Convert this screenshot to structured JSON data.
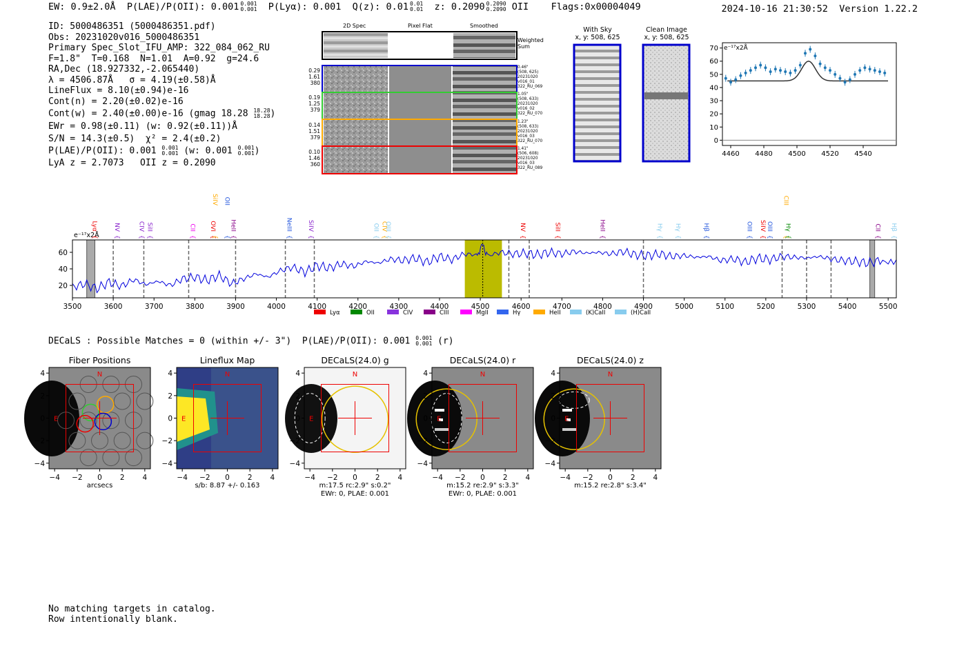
{
  "header": {
    "ew": "EW: 0.9±2.0Å",
    "plae": "P(LAE)/P(OII): 0.001",
    "plya": "P(Lyα): 0.001",
    "qz": "Q(z): 0.01",
    "z": "z: 0.2090",
    "oii": "OII",
    "flags": "Flags:0x00004049",
    "timestamp": "2024-10-16 21:30:52",
    "version": "Version 1.22.2",
    "sup_val": "0.001",
    "sub_val": "0.001",
    "qz_sup": "0.01",
    "qz_sub": "0.01",
    "z_sup": "0.2090",
    "z_sub": "0.2090"
  },
  "info": {
    "id": "ID: 5000486351 (5000486351.pdf)",
    "obs": "Obs: 20231020v016_5000486351",
    "slot": "Primary Spec_Slot_IFU_AMP: 322_084_062_RU",
    "params": "F=1.8\"  T=0.168  N=1.01  A=0.92  g=24.6",
    "radec": "RA,Dec (18.927332,-2.065440)",
    "lambda": "λ = 4506.87Å   σ = 4.19(±0.58)Å",
    "lineflux": "LineFlux = 8.10(±0.94)e-16",
    "contn": "Cont(n) = 2.20(±0.02)e-16",
    "contw": "Cont(w) = 2.40(±0.00)e-16 (gmag 18.28",
    "contw_sup": "18.28",
    "contw_sub": "18.28",
    "ewr": "EWr = 0.98(±0.11) (w: 0.92(±0.11))Å",
    "sn": "S/N = 14.3(±0.5)  χ² = 2.4(±0.2)",
    "plae_line": "P(LAE)/P(OII): 0.001",
    "plae_w": "(w: 0.001",
    "plae_sup": "0.001",
    "plae_sub": "0.001",
    "lya_z": "LyA z = 2.7073   OII z = 0.2090"
  },
  "cutouts": {
    "col_2d": "2D Spec",
    "col_flat": "Pixel Flat",
    "col_smooth": "Smoothed",
    "weighted": "Weighted",
    "weighted2": "Sum",
    "rows": [
      {
        "left": [
          "0.29",
          "1.61",
          "380"
        ],
        "right": [
          "0.46\"",
          "(508, 625)",
          "20231020",
          "v016_01",
          "322_RU_069"
        ],
        "color": "#0000cc"
      },
      {
        "left": [
          "0.19",
          "1.25",
          "379"
        ],
        "right": [
          "1.05\"",
          "(508, 633)",
          "20231020",
          "v016_02",
          "322_RU_070"
        ],
        "color": "#33cc33"
      },
      {
        "left": [
          "0.14",
          "1.51",
          "379"
        ],
        "right": [
          "1.23\"",
          "(508, 633)",
          "20231020",
          "v016_03",
          "322_RU_070"
        ],
        "color": "#ffaa00"
      },
      {
        "left": [
          "0.10",
          "1.46",
          "360"
        ],
        "right": [
          "1.41\"",
          "(506, 608)",
          "20231020",
          "v016_03",
          "322_RU_089"
        ],
        "color": "#ee0000"
      }
    ],
    "with_sky": "With Sky",
    "with_sky_xy": "x, y: 508, 625",
    "clean": "Clean Image",
    "clean_xy": "x, y: 508, 625"
  },
  "zoom_chart": {
    "unit": "e⁻¹⁷x2Å",
    "x_ticks": [
      4460,
      4480,
      4500,
      4520,
      4540
    ],
    "y_ticks": [
      0,
      10,
      20,
      30,
      40,
      50,
      60,
      70
    ],
    "xlim": [
      4455,
      4560
    ],
    "ylim": [
      -4,
      74
    ]
  },
  "chart_data": {
    "type": "line",
    "title": "",
    "ylabel": "e⁻¹⁷x2Å",
    "xlabel": "",
    "xlim": [
      3500,
      5520
    ],
    "ylim": [
      5,
      75
    ],
    "x_ticks": [
      3500,
      3600,
      3700,
      3800,
      3900,
      4000,
      4100,
      4200,
      4300,
      4400,
      4500,
      4600,
      4700,
      4800,
      4900,
      5000,
      5100,
      5200,
      5300,
      5400,
      5500
    ],
    "y_ticks": [
      20,
      40,
      60
    ],
    "series": [
      {
        "name": "spectrum",
        "x": [
          3500,
          3530,
          3560,
          3590,
          3620,
          3650,
          3680,
          3710,
          3740,
          3770,
          3800,
          3830,
          3860,
          3890,
          3920,
          3950,
          3980,
          4010,
          4040,
          4070,
          4100,
          4130,
          4160,
          4190,
          4220,
          4250,
          4280,
          4310,
          4340,
          4370,
          4400,
          4430,
          4460,
          4490,
          4506,
          4520,
          4550,
          4580,
          4610,
          4640,
          4670,
          4700,
          4730,
          4760,
          4790,
          4820,
          4850,
          4880,
          4910,
          4940,
          4970,
          5000,
          5030,
          5060,
          5090,
          5120,
          5150,
          5180,
          5210,
          5240,
          5270,
          5300,
          5330,
          5360,
          5390,
          5420,
          5450,
          5480,
          5520
        ],
        "y": [
          18,
          22,
          16,
          24,
          19,
          27,
          21,
          25,
          20,
          28,
          30,
          26,
          32,
          22,
          28,
          34,
          30,
          38,
          42,
          36,
          44,
          41,
          46,
          43,
          49,
          47,
          52,
          50,
          53,
          48,
          55,
          51,
          58,
          57,
          68,
          56,
          60,
          58,
          59,
          57,
          60,
          58,
          61,
          59,
          60,
          58,
          61,
          57,
          56,
          58,
          55,
          56,
          54,
          55,
          50,
          52,
          48,
          53,
          51,
          55,
          54,
          53,
          55,
          52,
          50,
          49,
          47,
          50,
          51
        ]
      }
    ],
    "shaded_regions": [
      {
        "x0": 3535,
        "x1": 3555,
        "color": "#aaaaaa"
      },
      {
        "x0": 4462,
        "x1": 4553,
        "color": "#bbbb00"
      },
      {
        "x0": 5455,
        "x1": 5467,
        "color": "#aaaaaa"
      }
    ],
    "dashed_lines": [
      3600,
      3675,
      3785,
      3900,
      4022,
      4093,
      4570,
      4620,
      4900,
      5240,
      5300,
      5360
    ],
    "center_line": 4506,
    "line_labels": [
      {
        "text": "Lyα",
        "x": 3545,
        "color": "#ee0000"
      },
      {
        "text": "NV",
        "x": 3600,
        "color": "#8822cc"
      },
      {
        "text": "CIV",
        "x": 3660,
        "color": "#8822cc"
      },
      {
        "text": "SiII",
        "x": 3680,
        "color": "#8822cc"
      },
      {
        "text": "CII",
        "x": 3785,
        "color": "#ee00ee"
      },
      {
        "text": "OVI",
        "x": 3835,
        "color": "#ee0000"
      },
      {
        "text": "SiIV",
        "x": 3840,
        "color": "#ffaa00",
        "high": true
      },
      {
        "text": "OII",
        "x": 3870,
        "color": "#2255dd",
        "high": true
      },
      {
        "text": "HeII",
        "x": 3885,
        "color": "#880088"
      },
      {
        "text": "NeIII",
        "x": 4022,
        "color": "#2255dd"
      },
      {
        "text": "SiIV",
        "x": 4075,
        "color": "#8822cc"
      },
      {
        "text": "OII",
        "x": 4235,
        "color": "#88ccee"
      },
      {
        "text": "CIV",
        "x": 4255,
        "color": "#ffaa00"
      },
      {
        "text": "OIII",
        "x": 4265,
        "color": "#88ccee"
      },
      {
        "text": "NV",
        "x": 4595,
        "color": "#ee0000"
      },
      {
        "text": "SiII",
        "x": 4680,
        "color": "#ee0000"
      },
      {
        "text": "HeII",
        "x": 4790,
        "color": "#880088"
      },
      {
        "text": "Hγ",
        "x": 4930,
        "color": "#88ccee"
      },
      {
        "text": "Hγ",
        "x": 4975,
        "color": "#88ccee"
      },
      {
        "text": "Hβ",
        "x": 5045,
        "color": "#2255dd"
      },
      {
        "text": "OIII",
        "x": 5150,
        "color": "#2255dd"
      },
      {
        "text": "SiIV",
        "x": 5183,
        "color": "#ee0000"
      },
      {
        "text": "OIII",
        "x": 5200,
        "color": "#2255dd"
      },
      {
        "text": "CIII",
        "x": 5240,
        "color": "#ffaa00",
        "high": true
      },
      {
        "text": "Hγ",
        "x": 5245,
        "color": "#008800"
      },
      {
        "text": "CII",
        "x": 5465,
        "color": "#880088"
      },
      {
        "text": "Hβ",
        "x": 5505,
        "color": "#88ccee"
      }
    ],
    "legend": [
      {
        "label": "Lyα",
        "color": "#ee0000"
      },
      {
        "label": "OII",
        "color": "#008800"
      },
      {
        "label": "CIV",
        "color": "#8833dd"
      },
      {
        "label": "CIII",
        "color": "#880088"
      },
      {
        "label": "MgII",
        "color": "#ff00ff"
      },
      {
        "label": "Hγ",
        "color": "#3366ee"
      },
      {
        "label": "HeII",
        "color": "#ffaa00"
      },
      {
        "label": "(K)CaII",
        "color": "#88ccee"
      },
      {
        "label": "(H)CaII",
        "color": "#88ccee"
      }
    ],
    "zoom_points": {
      "x": [
        4457,
        4460,
        4463,
        4466,
        4469,
        4472,
        4475,
        4478,
        4481,
        4484,
        4487,
        4490,
        4493,
        4496,
        4499,
        4502,
        4505,
        4508,
        4511,
        4514,
        4517,
        4520,
        4523,
        4526,
        4529,
        4532,
        4535,
        4538,
        4541,
        4544,
        4547,
        4550,
        4553
      ],
      "y": [
        47,
        44,
        46,
        49,
        51,
        53,
        55,
        57,
        55,
        52,
        54,
        53,
        52,
        51,
        53,
        57,
        66,
        69,
        64,
        58,
        55,
        53,
        50,
        47,
        44,
        46,
        50,
        53,
        55,
        54,
        53,
        52,
        51
      ],
      "fit_base": 45,
      "fit_peak": 60,
      "fit_center": 4507,
      "fit_sigma": 4.19
    }
  },
  "decals": {
    "line": "DECaLS : Possible Matches = 0 (within +/- 3\")  P(LAE)/P(OII): 0.001",
    "line_sup": "0.001",
    "line_sub": "0.001",
    "line_suffix": "(r)",
    "panels": [
      {
        "title": "Fiber Positions",
        "cap1": "arcsecs",
        "cap2": ""
      },
      {
        "title": "Lineflux Map",
        "cap1": "s/b: 8.87 +/- 0.163",
        "cap2": ""
      },
      {
        "title": "DECaLS(24.0) g",
        "cap1": "m:17.5 rc:2.9\"  s:0.2\"",
        "cap2": "EWr: 0, PLAE: 0.001"
      },
      {
        "title": "DECaLS(24.0) r",
        "cap1": "m:15.2  re:2.9\"  s:3.3\"",
        "cap2": "EWr: 0, PLAE: 0.001"
      },
      {
        "title": "DECaLS(24.0) z",
        "cap1": "m:15.2  re:2.8\"  s:3.4\"",
        "cap2": ""
      }
    ],
    "ticks": [
      "−4",
      "−2",
      "0",
      "2",
      "4"
    ],
    "north": "N",
    "east": "E"
  },
  "footer": {
    "line1": "No matching targets in catalog.",
    "line2": "Row intentionally blank."
  }
}
